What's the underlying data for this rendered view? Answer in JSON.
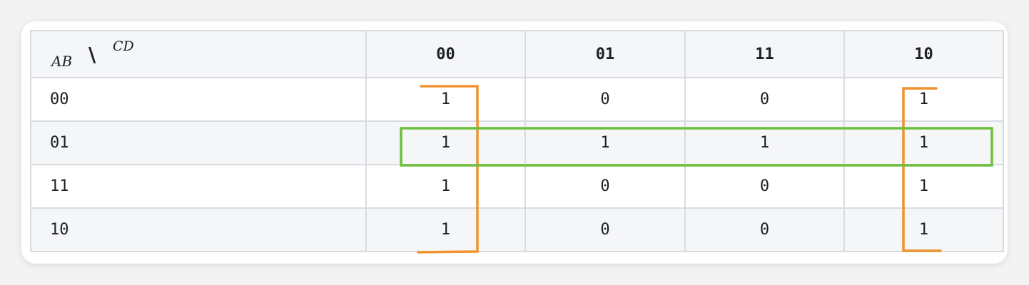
{
  "kmap": {
    "row_var": "AB",
    "separator": "\\",
    "col_var": "CD",
    "col_headers": [
      "00",
      "01",
      "11",
      "10"
    ],
    "rows": [
      {
        "label": "00",
        "cells": [
          "1",
          "0",
          "0",
          "1"
        ]
      },
      {
        "label": "01",
        "cells": [
          "1",
          "1",
          "1",
          "1"
        ]
      },
      {
        "label": "11",
        "cells": [
          "1",
          "0",
          "0",
          "1"
        ]
      },
      {
        "label": "10",
        "cells": [
          "1",
          "0",
          "0",
          "1"
        ]
      }
    ]
  },
  "groups": [
    {
      "name": "outer-columns-group",
      "color": "#f0922e",
      "columns": [
        "00",
        "10"
      ],
      "rows": [
        "00",
        "01",
        "11",
        "10"
      ]
    },
    {
      "name": "row-01-group",
      "color": "#6cbf3a",
      "columns": [
        "00",
        "01",
        "11",
        "10"
      ],
      "rows": [
        "01"
      ]
    }
  ]
}
